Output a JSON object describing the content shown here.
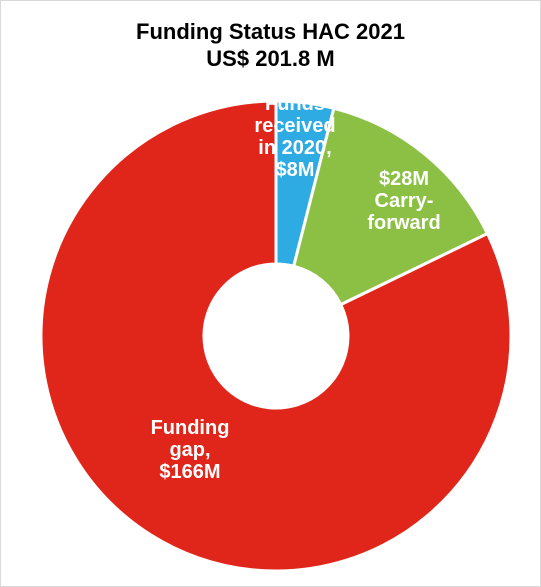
{
  "chart_data": {
    "type": "pie",
    "style": "donut",
    "title": "Funding Status HAC 2021",
    "subtitle": "US$ 201.8 M",
    "slices": [
      {
        "label_lines": [
          "Funds",
          "received",
          "in 2020,",
          "$8M"
        ],
        "value": 8,
        "color": "#2eabe3"
      },
      {
        "label_lines": [
          "$28M",
          "Carry-",
          "forward"
        ],
        "value": 28,
        "color": "#8cc045"
      },
      {
        "label_lines": [
          "Funding",
          "gap,",
          "$166M"
        ],
        "value": 166,
        "color": "#e0261b"
      }
    ],
    "legend": "none"
  }
}
